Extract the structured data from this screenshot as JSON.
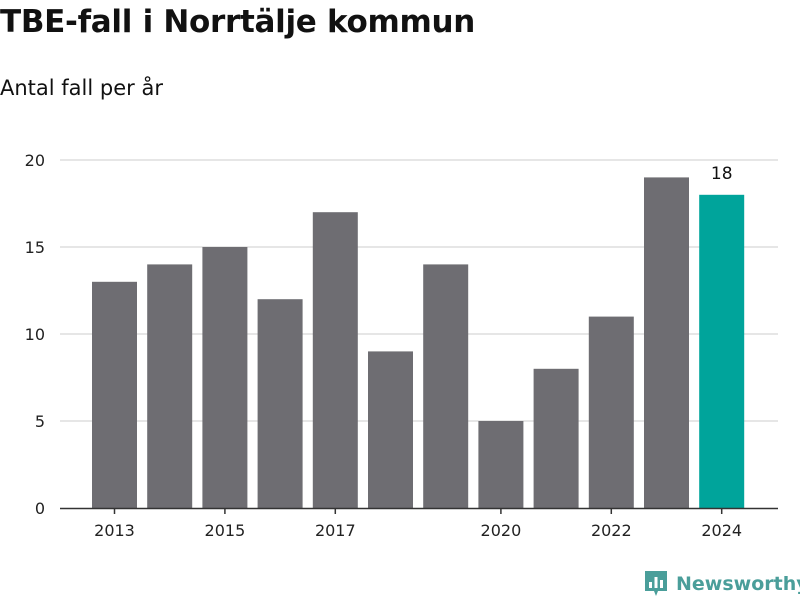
{
  "header": {
    "title": "TBE-fall i Norrtälje kommun",
    "subtitle": "Antal fall per år"
  },
  "brand": {
    "name": "Newsworthy",
    "icon": "newsworthy-logo-icon",
    "color": "#4a9e9a"
  },
  "chart_data": {
    "type": "bar",
    "categories": [
      "2013",
      "2014",
      "2015",
      "2016",
      "2017",
      "2018",
      "2019",
      "2020",
      "2021",
      "2022",
      "2023",
      "2024"
    ],
    "values": [
      13,
      14,
      15,
      12,
      17,
      9,
      14,
      5,
      8,
      11,
      19,
      18
    ],
    "ylim": [
      0,
      20
    ],
    "yticks": [
      "0",
      "5",
      "10",
      "15",
      "20"
    ],
    "xtick_labels": [
      "2013",
      "2015",
      "2017",
      "2020",
      "2022",
      "2024"
    ],
    "highlight": {
      "category": "2024",
      "value_label": "18"
    },
    "grid": true,
    "colors": {
      "bar": "#6e6d72",
      "highlight": "#00a49b",
      "grid": "#dddddd",
      "axis": "#333333"
    }
  }
}
